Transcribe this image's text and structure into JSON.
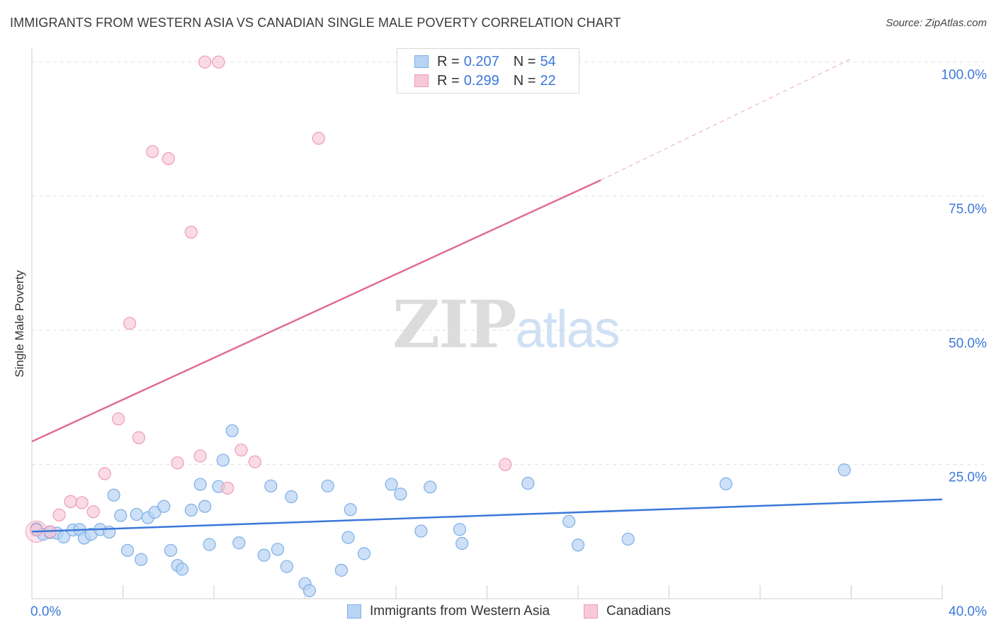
{
  "title": "IMMIGRANTS FROM WESTERN ASIA VS CANADIAN SINGLE MALE POVERTY CORRELATION CHART",
  "source": "Source: ZipAtlas.com",
  "watermark": {
    "zip": "ZIP",
    "atlas": "atlas"
  },
  "colors": {
    "blue_fill": "#b8d3f3",
    "blue_stroke": "#7eaee6",
    "blue_line": "#3b78d8",
    "pink_fill": "#f8c8d6",
    "pink_stroke": "#ee9bb5",
    "pink_line": "#e06c96",
    "axis_label": "#3b78d8",
    "grid": "#e0e0e0"
  },
  "legend": {
    "rows": [
      {
        "r_label": "R =",
        "r_value": "0.207",
        "n_label": "N =",
        "n_value": "54"
      },
      {
        "r_label": "R =",
        "r_value": "0.299",
        "n_label": "N =",
        "n_value": "22"
      }
    ]
  },
  "bottom_legend": {
    "series1": "Immigrants from Western Asia",
    "series2": "Canadians"
  },
  "chart_data": {
    "type": "scatter",
    "title": "IMMIGRANTS FROM WESTERN ASIA VS CANADIAN SINGLE MALE POVERTY CORRELATION CHART",
    "xlabel": "",
    "ylabel": "Single Male Poverty",
    "xlim": [
      0,
      40
    ],
    "ylim": [
      0,
      101
    ],
    "x_tick_labels": [
      "0.0%",
      "40.0%"
    ],
    "y_ticks": [
      25,
      50,
      75,
      100
    ],
    "y_tick_labels": [
      "25.0%",
      "50.0%",
      "75.0%",
      "100.0%"
    ],
    "series": [
      {
        "name": "Immigrants from Western Asia",
        "R": 0.207,
        "N": 54,
        "trend": {
          "x0": 0,
          "y0": 12.5,
          "x1": 40,
          "y1": 18.5
        },
        "points": [
          [
            0.2,
            13.0
          ],
          [
            0.5,
            12.0
          ],
          [
            0.8,
            12.3
          ],
          [
            1.1,
            12.2
          ],
          [
            1.4,
            11.5
          ],
          [
            1.8,
            12.8
          ],
          [
            2.1,
            12.9
          ],
          [
            2.3,
            11.3
          ],
          [
            2.6,
            12.0
          ],
          [
            3.0,
            12.9
          ],
          [
            3.4,
            12.4
          ],
          [
            3.6,
            19.3
          ],
          [
            3.9,
            15.5
          ],
          [
            4.2,
            9.0
          ],
          [
            4.6,
            15.7
          ],
          [
            4.8,
            7.3
          ],
          [
            5.1,
            15.1
          ],
          [
            5.4,
            16.1
          ],
          [
            5.8,
            17.2
          ],
          [
            6.1,
            9.0
          ],
          [
            6.4,
            6.2
          ],
          [
            6.6,
            5.5
          ],
          [
            7.0,
            16.5
          ],
          [
            7.4,
            21.3
          ],
          [
            7.6,
            17.2
          ],
          [
            7.8,
            10.1
          ],
          [
            8.2,
            20.9
          ],
          [
            8.4,
            25.8
          ],
          [
            8.8,
            31.3
          ],
          [
            9.1,
            10.4
          ],
          [
            10.2,
            8.1
          ],
          [
            10.5,
            21.0
          ],
          [
            10.8,
            9.2
          ],
          [
            11.2,
            6.0
          ],
          [
            11.4,
            19.0
          ],
          [
            12.0,
            2.8
          ],
          [
            12.2,
            1.5
          ],
          [
            13.0,
            21.0
          ],
          [
            13.6,
            5.3
          ],
          [
            13.9,
            11.4
          ],
          [
            14.0,
            16.6
          ],
          [
            14.6,
            8.4
          ],
          [
            15.8,
            21.3
          ],
          [
            16.2,
            19.5
          ],
          [
            17.1,
            12.6
          ],
          [
            17.5,
            20.8
          ],
          [
            18.8,
            12.9
          ],
          [
            18.9,
            10.3
          ],
          [
            21.8,
            21.5
          ],
          [
            23.6,
            14.4
          ],
          [
            24.0,
            10.0
          ],
          [
            26.2,
            11.1
          ],
          [
            30.5,
            21.4
          ],
          [
            35.7,
            24.0
          ]
        ]
      },
      {
        "name": "Canadians",
        "R": 0.299,
        "N": 22,
        "trend": {
          "x0": 0,
          "y0": 29.3,
          "x1": 25,
          "y1": 78.0
        },
        "trend_dashed": {
          "x0": 25,
          "y0": 78.0,
          "x1": 36,
          "y1": 100.6
        },
        "points": [
          [
            0.2,
            12.8
          ],
          [
            0.8,
            12.5
          ],
          [
            1.2,
            15.6
          ],
          [
            1.7,
            18.1
          ],
          [
            2.2,
            17.9
          ],
          [
            2.7,
            16.2
          ],
          [
            3.2,
            23.3
          ],
          [
            3.8,
            33.5
          ],
          [
            4.3,
            51.3
          ],
          [
            4.7,
            30.0
          ],
          [
            5.3,
            83.3
          ],
          [
            6.0,
            82.0
          ],
          [
            6.4,
            25.3
          ],
          [
            7.0,
            68.3
          ],
          [
            7.4,
            26.6
          ],
          [
            7.6,
            100.0
          ],
          [
            8.2,
            100.0
          ],
          [
            8.6,
            20.6
          ],
          [
            9.2,
            27.7
          ],
          [
            9.8,
            25.5
          ],
          [
            12.6,
            85.8
          ],
          [
            20.8,
            25.0
          ]
        ]
      }
    ]
  }
}
